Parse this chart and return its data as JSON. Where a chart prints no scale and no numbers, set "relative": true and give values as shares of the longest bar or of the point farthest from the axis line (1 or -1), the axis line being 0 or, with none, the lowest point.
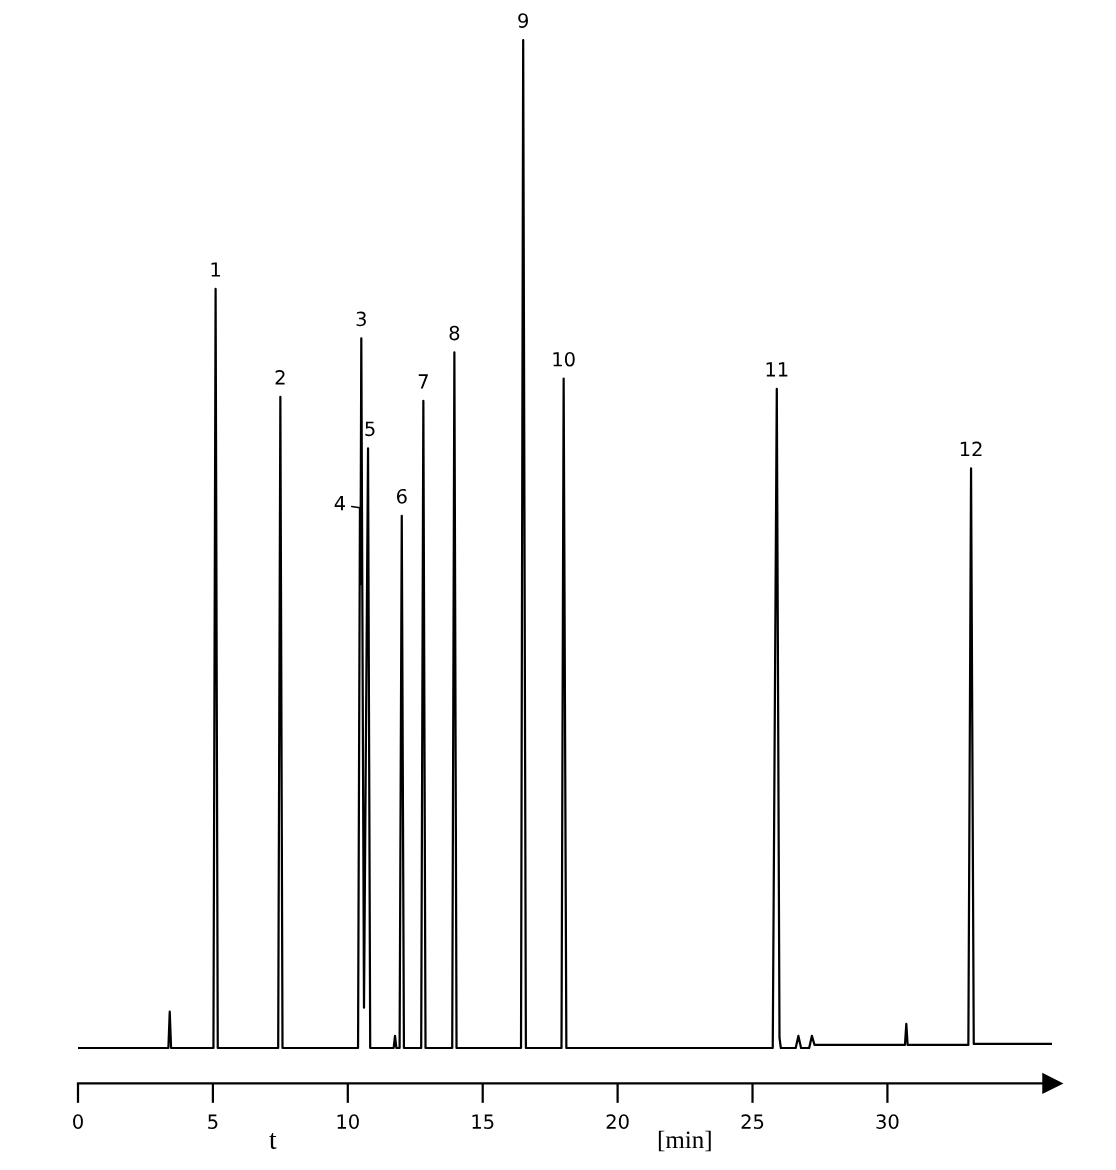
{
  "chart_data": {
    "type": "line",
    "relative": true,
    "color": "#000000",
    "line_style": "solid",
    "marker": "none",
    "grid": false,
    "xlabel": "t [min]",
    "xlim": [
      0,
      36.1
    ],
    "xticks": [
      0,
      5,
      10,
      15,
      20,
      25,
      30
    ],
    "x": [
      0,
      3.35,
      3.4,
      3.45,
      5.02,
      5.1,
      5.18,
      7.42,
      7.5,
      7.58,
      10.38,
      10.45,
      10.47,
      10.5,
      10.6,
      10.75,
      10.83,
      11.7,
      11.75,
      11.8,
      11.92,
      12.0,
      12.08,
      12.72,
      12.8,
      12.88,
      13.87,
      13.95,
      14.03,
      16.42,
      16.5,
      16.6,
      17.92,
      18.0,
      18.1,
      25.75,
      25.9,
      26.0,
      26.05,
      26.6,
      26.7,
      26.8,
      27.1,
      27.2,
      27.3,
      30.65,
      30.7,
      30.75,
      33.0,
      33.1,
      33.2,
      36.1
    ],
    "values": [
      0,
      0,
      0.036,
      0,
      0,
      0.753,
      0,
      0,
      0.646,
      0,
      0,
      0.536,
      0.46,
      0.704,
      0.04,
      0.595,
      0,
      0,
      0.012,
      0,
      0,
      0.528,
      0,
      0,
      0.642,
      0,
      0,
      0.69,
      0,
      0,
      1.0,
      0,
      0,
      0.664,
      0,
      0,
      0.654,
      0.01,
      0,
      0,
      0.012,
      0,
      0,
      0.012,
      0.003,
      0.003,
      0.024,
      0.003,
      0.003,
      0.575,
      0.004,
      0.004
    ],
    "annotations": [
      {
        "text": "1",
        "x": 5.1,
        "y": 0.753
      },
      {
        "text": "2",
        "x": 7.5,
        "y": 0.646
      },
      {
        "text": "3",
        "x": 10.5,
        "y": 0.704
      },
      {
        "text": "4",
        "x": 10.45,
        "y": 0.536
      },
      {
        "text": "5",
        "x": 10.75,
        "y": 0.595
      },
      {
        "text": "6",
        "x": 12.0,
        "y": 0.528
      },
      {
        "text": "7",
        "x": 12.8,
        "y": 0.642
      },
      {
        "text": "8",
        "x": 13.95,
        "y": 0.69
      },
      {
        "text": "9",
        "x": 16.5,
        "y": 1.0
      },
      {
        "text": "10",
        "x": 18.0,
        "y": 0.664
      },
      {
        "text": "11",
        "x": 25.9,
        "y": 0.654
      },
      {
        "text": "12",
        "x": 33.1,
        "y": 0.575
      }
    ]
  }
}
